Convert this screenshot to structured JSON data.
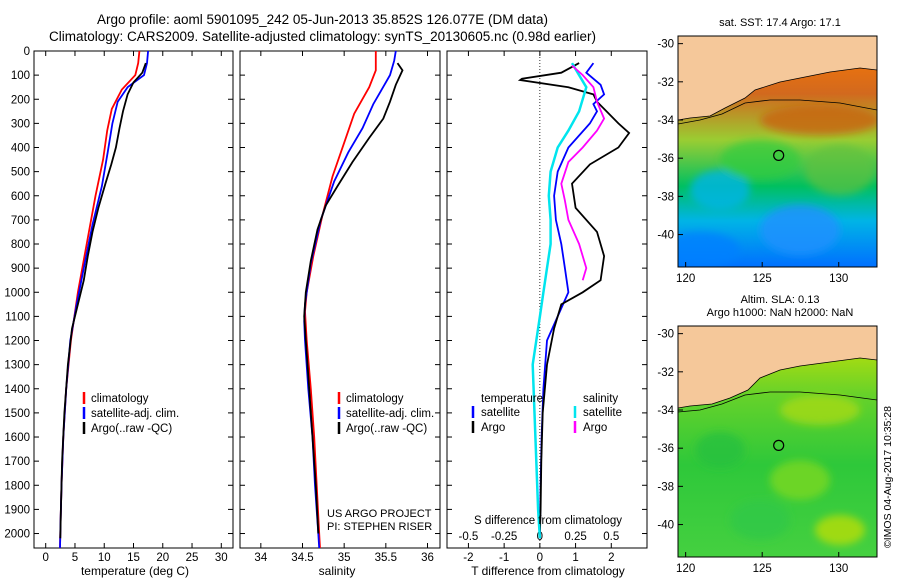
{
  "title_line1": "Argo profile: aoml 5901095_242 05-Jun-2013 35.852S 126.077E (DM data)",
  "title_line2": "Climatology: CARS2009. Satellite-adjusted climatology: synTS_20130605.nc (0.98d earlier)",
  "credit": "©IMOS 04-Aug-2017 10:35:28",
  "project_line1": "US ARGO PROJECT",
  "project_line2": "PI: STEPHEN RISER",
  "colors": {
    "climatology": "#ff0000",
    "satellite": "#0000ff",
    "argo": "#000000",
    "salinity_satellite": "#00e5ee",
    "salinity_argo": "#ff00ff",
    "land": "#f5c89a"
  },
  "chart_data": [
    {
      "type": "line",
      "id": "temperature",
      "xlabel": "temperature (deg C)",
      "xlim": [
        -2,
        32
      ],
      "xticks": [
        0,
        5,
        10,
        15,
        20,
        25,
        30
      ],
      "ylim": [
        2060,
        0
      ],
      "yticks": [
        0,
        100,
        200,
        300,
        400,
        500,
        600,
        700,
        800,
        900,
        1000,
        1100,
        1200,
        1300,
        1400,
        1500,
        1600,
        1700,
        1800,
        1900,
        2000
      ],
      "legend": [
        "climatology",
        "satellite-adj. clim.",
        "Argo(..raw -QC)"
      ],
      "series": [
        {
          "name": "climatology",
          "color": "#ff0000",
          "points": [
            [
              16,
              0
            ],
            [
              15.8,
              50
            ],
            [
              15.3,
              100
            ],
            [
              13,
              160
            ],
            [
              11.3,
              240
            ],
            [
              10.5,
              330
            ],
            [
              9.8,
              450
            ],
            [
              8.5,
              600
            ],
            [
              7,
              800
            ],
            [
              5.5,
              1000
            ],
            [
              4.3,
              1200
            ],
            [
              3.5,
              1400
            ],
            [
              3,
              1600
            ],
            [
              2.7,
              1800
            ],
            [
              2.5,
              2000
            ],
            [
              2.45,
              2060
            ]
          ]
        },
        {
          "name": "satellite-adj. clim.",
          "color": "#0000ff",
          "points": [
            [
              17.5,
              0
            ],
            [
              17.3,
              50
            ],
            [
              16.8,
              100
            ],
            [
              14,
              150
            ],
            [
              12.3,
              210
            ],
            [
              11.4,
              300
            ],
            [
              10.6,
              420
            ],
            [
              9.6,
              560
            ],
            [
              8,
              720
            ],
            [
              6.5,
              900
            ],
            [
              5.3,
              1050
            ],
            [
              4.2,
              1200
            ],
            [
              3.5,
              1400
            ],
            [
              3,
              1600
            ],
            [
              2.7,
              1800
            ],
            [
              2.5,
              2000
            ],
            [
              2.45,
              2060
            ]
          ]
        },
        {
          "name": "Argo(..raw -QC)",
          "color": "#000000",
          "points": [
            [
              17.1,
              50
            ],
            [
              16.5,
              90
            ],
            [
              15,
              130
            ],
            [
              14,
              180
            ],
            [
              13.2,
              250
            ],
            [
              12.6,
              320
            ],
            [
              12,
              400
            ],
            [
              11.2,
              470
            ],
            [
              10.2,
              550
            ],
            [
              9,
              650
            ],
            [
              8,
              750
            ],
            [
              7.2,
              850
            ],
            [
              6.5,
              950
            ],
            [
              5.5,
              1050
            ],
            [
              4.5,
              1150
            ],
            [
              3.8,
              1300
            ],
            [
              3.2,
              1500
            ],
            [
              2.8,
              1700
            ],
            [
              2.6,
              1900
            ],
            [
              2.5,
              2020
            ]
          ]
        }
      ]
    },
    {
      "type": "line",
      "id": "salinity",
      "xlabel": "salinity",
      "xlim": [
        33.75,
        36.15
      ],
      "xticks": [
        34,
        34.5,
        35,
        35.5,
        36
      ],
      "ylim": [
        2060,
        0
      ],
      "legend": [
        "climatology",
        "satellite-adj. clim.",
        "Argo(..raw -QC)"
      ],
      "series": [
        {
          "name": "climatology",
          "color": "#ff0000",
          "points": [
            [
              35.38,
              0
            ],
            [
              35.38,
              80
            ],
            [
              35.3,
              150
            ],
            [
              35.12,
              260
            ],
            [
              35.0,
              380
            ],
            [
              34.86,
              520
            ],
            [
              34.74,
              680
            ],
            [
              34.63,
              850
            ],
            [
              34.55,
              1000
            ],
            [
              34.53,
              1080
            ],
            [
              34.55,
              1200
            ],
            [
              34.6,
              1400
            ],
            [
              34.64,
              1600
            ],
            [
              34.67,
              1800
            ],
            [
              34.7,
              2000
            ],
            [
              34.71,
              2060
            ]
          ]
        },
        {
          "name": "satellite-adj. clim.",
          "color": "#0000ff",
          "points": [
            [
              35.62,
              0
            ],
            [
              35.6,
              40
            ],
            [
              35.55,
              100
            ],
            [
              35.45,
              160
            ],
            [
              35.35,
              220
            ],
            [
              35.22,
              320
            ],
            [
              35.05,
              420
            ],
            [
              34.88,
              540
            ],
            [
              34.72,
              700
            ],
            [
              34.6,
              880
            ],
            [
              34.53,
              1050
            ],
            [
              34.52,
              1120
            ],
            [
              34.53,
              1200
            ],
            [
              34.57,
              1400
            ],
            [
              34.62,
              1600
            ],
            [
              34.65,
              1800
            ],
            [
              34.69,
              2000
            ],
            [
              34.7,
              2060
            ]
          ]
        },
        {
          "name": "Argo(..raw -QC)",
          "color": "#000000",
          "points": [
            [
              35.64,
              50
            ],
            [
              35.7,
              80
            ],
            [
              35.62,
              140
            ],
            [
              35.55,
              210
            ],
            [
              35.47,
              280
            ],
            [
              35.3,
              360
            ],
            [
              35.1,
              460
            ],
            [
              34.92,
              560
            ],
            [
              34.78,
              640
            ],
            [
              34.68,
              740
            ],
            [
              34.6,
              870
            ],
            [
              34.54,
              1000
            ],
            [
              34.52,
              1100
            ],
            [
              34.54,
              1200
            ],
            [
              34.58,
              1400
            ],
            [
              34.62,
              1600
            ],
            [
              34.66,
              1800
            ],
            [
              34.69,
              2000
            ]
          ]
        }
      ]
    },
    {
      "type": "line",
      "id": "difference",
      "xlabel": "T difference from climatology",
      "xlabel_top": "S difference from climatology",
      "xlim": [
        -2.6,
        3
      ],
      "xticks": [
        -2,
        -1,
        0,
        1,
        2
      ],
      "xticks_top": [
        -0.5,
        -0.25,
        0,
        0.25,
        0.5
      ],
      "ylim": [
        2060,
        0
      ],
      "legend_temperature_heading": "temperature",
      "legend_salinity_heading": "salinity",
      "legend_satellite": "satellite",
      "legend_argo": "Argo",
      "series": [
        {
          "name": "T satellite",
          "color": "#0000ff",
          "points": [
            [
              1.5,
              50
            ],
            [
              1.3,
              90
            ],
            [
              1.7,
              140
            ],
            [
              1.8,
              180
            ],
            [
              1.5,
              220
            ],
            [
              1.6,
              250
            ],
            [
              1.4,
              300
            ],
            [
              0.8,
              400
            ],
            [
              0.5,
              500
            ],
            [
              0.4,
              600
            ],
            [
              0.45,
              700
            ],
            [
              0.6,
              800
            ],
            [
              0.7,
              900
            ],
            [
              0.8,
              1000
            ],
            [
              0.5,
              1100
            ],
            [
              0.2,
              1200
            ],
            [
              0.1,
              1400
            ],
            [
              0.05,
              1600
            ],
            [
              0.02,
              1800
            ],
            [
              0,
              2020
            ]
          ]
        },
        {
          "name": "T Argo",
          "color": "#000000",
          "points": [
            [
              1.1,
              50
            ],
            [
              0.6,
              90
            ],
            [
              -0.5,
              115
            ],
            [
              -0.55,
              120
            ],
            [
              0.8,
              150
            ],
            [
              1.5,
              180
            ],
            [
              1.6,
              210
            ],
            [
              1.8,
              240
            ],
            [
              2.2,
              300
            ],
            [
              2.5,
              340
            ],
            [
              2.2,
              400
            ],
            [
              1.4,
              470
            ],
            [
              0.9,
              550
            ],
            [
              1.0,
              650
            ],
            [
              1.6,
              750
            ],
            [
              1.8,
              850
            ],
            [
              1.7,
              950
            ],
            [
              1.2,
              1000
            ],
            [
              0.6,
              1050
            ],
            [
              0.4,
              1150
            ],
            [
              0.2,
              1300
            ],
            [
              0.08,
              1500
            ],
            [
              0.04,
              1700
            ],
            [
              0.02,
              1900
            ],
            [
              0,
              2000
            ]
          ]
        },
        {
          "name": "S satellite",
          "color": "#00e5ee",
          "points": [
            [
              0.9,
              50
            ],
            [
              1.1,
              100
            ],
            [
              1.3,
              150
            ],
            [
              1.1,
              250
            ],
            [
              0.8,
              330
            ],
            [
              0.5,
              400
            ],
            [
              0.3,
              500
            ],
            [
              0.25,
              600
            ],
            [
              0.3,
              700
            ],
            [
              0.3,
              800
            ],
            [
              0.2,
              900
            ],
            [
              0.1,
              1000
            ],
            [
              0,
              1100
            ],
            [
              -0.1,
              1200
            ],
            [
              -0.2,
              1300
            ],
            [
              -0.15,
              1500
            ],
            [
              -0.1,
              1700
            ],
            [
              -0.05,
              1900
            ],
            [
              0,
              2020
            ]
          ]
        },
        {
          "name": "S Argo",
          "color": "#ff00ff",
          "points": [
            [
              0.9,
              60
            ],
            [
              1.2,
              100
            ],
            [
              1.5,
              150
            ],
            [
              1.6,
              210
            ],
            [
              1.8,
              280
            ],
            [
              1.6,
              330
            ],
            [
              1.2,
              400
            ],
            [
              0.8,
              460
            ],
            [
              0.6,
              550
            ],
            [
              0.7,
              620
            ],
            [
              0.8,
              700
            ],
            [
              1.1,
              800
            ],
            [
              1.3,
              900
            ],
            [
              1.2,
              950
            ]
          ]
        }
      ]
    },
    {
      "type": "heatmap",
      "id": "sst_map",
      "title": "sat. SST: 17.4  Argo: 17.1",
      "xticks": [
        120,
        125,
        130
      ],
      "yticks": [
        -30,
        -32,
        -34,
        -36,
        -38,
        -40
      ],
      "xlim": [
        119.5,
        132.5
      ],
      "ylim": [
        -41.7,
        -29.6
      ],
      "marker": [
        126.077,
        -35.852
      ]
    },
    {
      "type": "heatmap",
      "id": "sla_map",
      "title_line1": "Altim. SLA: 0.13",
      "title_line2": "Argo h1000: NaN h2000: NaN",
      "xticks": [
        120,
        125,
        130
      ],
      "yticks": [
        -30,
        -32,
        -34,
        -36,
        -38,
        -40
      ],
      "xlim": [
        119.5,
        132.5
      ],
      "ylim": [
        -41.7,
        -29.6
      ],
      "marker": [
        126.077,
        -35.852
      ]
    }
  ]
}
